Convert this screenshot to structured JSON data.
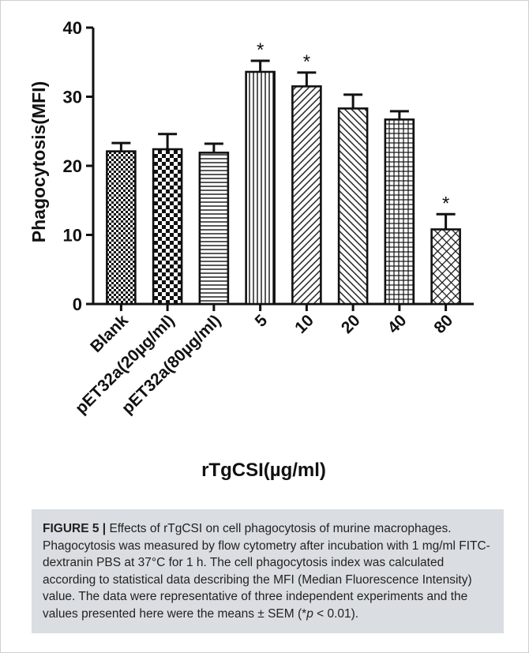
{
  "chart_data": {
    "type": "bar",
    "title": "",
    "xlabel": "rTgCSI(µg/ml)",
    "ylabel": "Phagocytosis(MFI)",
    "ylim": [
      0,
      40
    ],
    "yticks": [
      "0",
      "10",
      "20",
      "30",
      "40"
    ],
    "categories": [
      "Blank",
      "pET32a(20µg/ml)",
      "pET32a(80µg/ml)",
      "5",
      "10",
      "20",
      "40",
      "80"
    ],
    "values": [
      22.1,
      22.4,
      21.9,
      33.6,
      31.5,
      28.3,
      26.7,
      10.8
    ],
    "errors": [
      1.2,
      2.2,
      1.3,
      1.6,
      2.0,
      2.0,
      1.2,
      2.2
    ],
    "annotations": [
      "",
      "",
      "",
      "*",
      "*",
      "",
      "",
      "*"
    ],
    "patterns": [
      "dense-checker",
      "checker",
      "horizontal",
      "vertical",
      "diagonal-right",
      "diagonal-left",
      "grid",
      "crosshatch"
    ],
    "grid": false,
    "legend": "none"
  },
  "caption": {
    "label": "FIGURE 5 |",
    "text": " Effects of rTgCSI on cell phagocytosis of murine macrophages. Phagocytosis was measured by flow cytometry after incubation with 1 mg/ml FITC-dextranin PBS at 37°C for 1 h. The cell phagocytosis index was calculated according to statistical data describing the MFI (Median Fluorescence Intensity) value. The data were representative of three independent experiments and the values presented here were the means ± SEM (*",
    "p": "p",
    "tail": " < 0.01)."
  }
}
